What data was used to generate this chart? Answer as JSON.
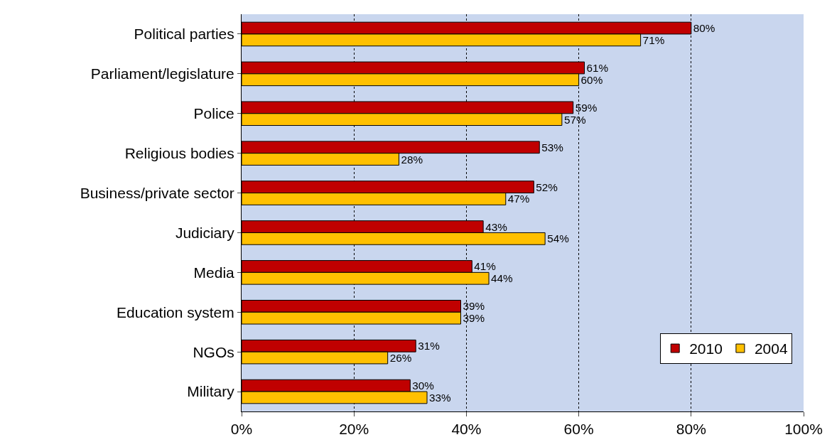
{
  "chart_data": {
    "type": "bar",
    "orientation": "horizontal",
    "categories": [
      "Political parties",
      "Parliament/legislature",
      "Police",
      "Religious bodies",
      "Business/private sector",
      "Judiciary",
      "Media",
      "Education system",
      "NGOs",
      "Military"
    ],
    "series": [
      {
        "name": "2010",
        "color": "#c00000",
        "values": [
          80,
          61,
          59,
          53,
          52,
          43,
          41,
          39,
          31,
          30
        ],
        "value_labels": [
          "80%",
          "61%",
          "59%",
          "53%",
          "52%",
          "43%",
          "41%",
          "39%",
          "31%",
          "30%"
        ]
      },
      {
        "name": "2004",
        "color": "#ffc000",
        "values": [
          71,
          60,
          57,
          28,
          47,
          54,
          44,
          39,
          26,
          33
        ],
        "value_labels": [
          "71%",
          "60%",
          "57%",
          "28%",
          "47%",
          "54%",
          "44%",
          "39%",
          "26%",
          "33%"
        ]
      }
    ],
    "xlim": [
      0,
      100
    ],
    "xticks": [
      {
        "value": 0,
        "label": "0%"
      },
      {
        "value": 20,
        "label": "20%"
      },
      {
        "value": 40,
        "label": "40%"
      },
      {
        "value": 60,
        "label": "60%"
      },
      {
        "value": 80,
        "label": "80%"
      },
      {
        "value": 100,
        "label": "100%"
      }
    ],
    "grid": "x",
    "legend": "bottom right"
  }
}
